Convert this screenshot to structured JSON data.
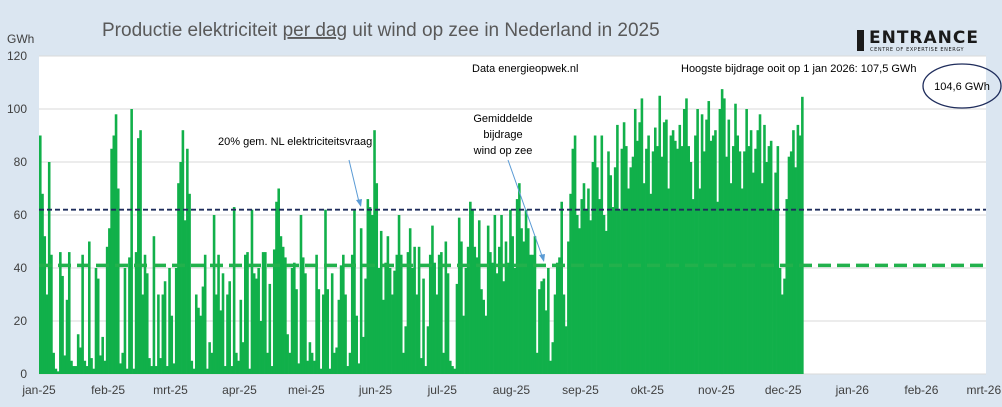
{
  "logo": {
    "name": "ENTRANCE",
    "tagline": "CENTRE OF EXPERTISE ENERGY"
  },
  "chart_data": {
    "type": "bar",
    "title_parts": [
      "Productie elektriciteit ",
      "per dag",
      " uit wind op zee in Nederland in 2025"
    ],
    "ylabel": "GWh",
    "xlabel": "",
    "ylim": [
      0,
      120
    ],
    "yticks": [
      0,
      20,
      40,
      60,
      80,
      100,
      120
    ],
    "grid": true,
    "legend": "none",
    "x_tick_labels": [
      "jan-25",
      "feb-25",
      "mrt-25",
      "apr-25",
      "mei-25",
      "jun-25",
      "jul-25",
      "aug-25",
      "sep-25",
      "okt-25",
      "nov-25",
      "dec-25",
      "jan-26",
      "feb-26",
      "mrt-26"
    ],
    "x_start_date": "2025-01-01",
    "bar_color": "#11b04a",
    "reference_lines": [
      {
        "value": 62,
        "style": "dashed",
        "color": "#1f2d5c",
        "label": "20% gem. NL elektriciteitsvraag"
      },
      {
        "value": 41,
        "style": "dashed",
        "color": "#22b14c",
        "label": "Gemiddelde bijdrage wind op zee"
      }
    ],
    "annotations": {
      "source": "Data energieopwek.nl",
      "record": "Hoogste bijdrage ooit op  1 jan 2026: 107,5 GWh",
      "latest": "104,6 GWh",
      "ref_high_label": "20% gem. NL elektriciteitsvraag",
      "ref_avg_label": [
        "Gemiddelde",
        "bijdrage",
        "wind op zee"
      ]
    },
    "values": [
      90,
      68,
      52,
      30,
      80,
      45,
      8,
      2,
      1,
      46,
      37,
      7,
      28,
      46,
      5,
      3,
      3,
      15,
      10,
      45,
      5,
      3,
      50,
      6,
      2,
      40,
      36,
      7,
      14,
      5,
      48,
      55,
      85,
      90,
      98,
      70,
      4,
      8,
      40,
      2,
      44,
      100,
      2,
      46,
      89,
      92,
      30,
      45,
      38,
      6,
      3,
      52,
      3,
      30,
      6,
      30,
      35,
      3,
      40,
      22,
      4,
      40,
      72,
      80,
      92,
      58,
      85,
      68,
      5,
      2,
      30,
      25,
      22,
      33,
      45,
      2,
      12,
      8,
      60,
      30,
      45,
      24,
      38,
      3,
      30,
      35,
      3,
      63,
      8,
      5,
      28,
      12,
      45,
      46,
      2,
      62,
      38,
      36,
      40,
      20,
      46,
      46,
      8,
      34,
      3,
      47,
      65,
      70,
      52,
      48,
      44,
      15,
      8,
      40,
      42,
      32,
      4,
      60,
      44,
      38,
      5,
      12,
      8,
      5,
      45,
      32,
      2,
      30,
      62,
      32,
      2,
      38,
      8,
      10,
      28,
      41,
      45,
      30,
      3,
      8,
      45,
      62,
      22,
      4,
      55,
      14,
      36,
      66,
      63,
      60,
      92,
      72,
      40,
      54,
      28,
      42,
      52,
      40,
      30,
      39,
      45,
      60,
      45,
      8,
      18,
      46,
      55,
      40,
      48,
      30,
      48,
      6,
      36,
      3,
      18,
      45,
      56,
      42,
      30,
      45,
      46,
      8,
      50,
      38,
      5,
      3,
      2,
      34,
      59,
      50,
      22,
      40,
      48,
      65,
      62,
      48,
      44,
      58,
      32,
      28,
      22,
      56,
      46,
      42,
      60,
      38,
      48,
      60,
      35,
      50,
      42,
      62,
      52,
      40,
      66,
      72,
      55,
      50,
      62,
      55,
      45,
      45,
      52,
      8,
      32,
      35,
      36,
      24,
      40,
      5,
      12,
      30,
      42,
      44,
      65,
      30,
      18,
      50,
      68,
      85,
      90,
      60,
      55,
      66,
      72,
      62,
      70,
      58,
      80,
      90,
      78,
      66,
      90,
      60,
      54,
      84,
      75,
      63,
      78,
      94,
      62,
      85,
      95,
      86,
      70,
      78,
      82,
      100,
      88,
      95,
      104,
      72,
      85,
      90,
      68,
      84,
      93,
      86,
      105,
      82,
      95,
      96,
      70,
      90,
      92,
      88,
      85,
      94,
      86,
      100,
      104,
      86,
      80,
      66,
      90,
      100,
      70,
      98,
      84,
      96,
      103,
      88,
      90,
      92,
      65,
      100,
      107.5,
      104,
      82,
      96,
      72,
      86,
      102,
      90,
      84,
      70,
      84,
      100,
      86,
      92,
      76,
      85,
      92,
      98,
      72,
      94,
      80,
      86,
      88,
      62,
      76,
      86,
      40,
      30,
      36,
      66,
      82,
      84,
      92,
      78,
      94,
      90,
      104.6
    ]
  }
}
